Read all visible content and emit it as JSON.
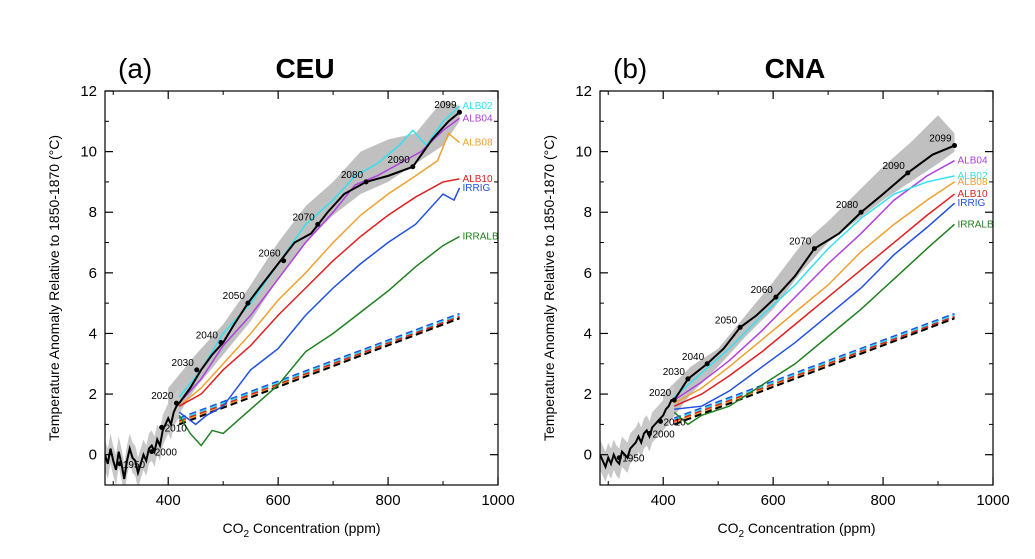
{
  "chart_data": [
    {
      "type": "line",
      "panel_letter": "(a)",
      "title": "CEU",
      "xlabel_main": "CO",
      "xlabel_sub": "2",
      "xlabel_rest": " Concentration (ppm)",
      "ylabel": "Temperature Anomaly Relative to 1850-1870 (°C)",
      "xlim": [
        285,
        1000
      ],
      "ylim": [
        -1,
        12
      ],
      "xticks": [
        "400",
        "600",
        "800",
        "1000"
      ],
      "xtick_values": [
        400,
        600,
        800,
        1000
      ],
      "yticks": [
        "0",
        "2",
        "4",
        "6",
        "8",
        "10",
        "12"
      ],
      "ytick_values": [
        0,
        2,
        4,
        6,
        8,
        10,
        12
      ],
      "historical": {
        "x": [
          285,
          290,
          295,
          300,
          305,
          310,
          315,
          320,
          325,
          330,
          335,
          340,
          345,
          350,
          355,
          360,
          365,
          370,
          375,
          380,
          385,
          390,
          395,
          400,
          405,
          410,
          415,
          420
        ],
        "y": [
          0.0,
          -0.3,
          0.2,
          -0.2,
          -0.5,
          0.1,
          -0.3,
          -0.8,
          -0.2,
          0.2,
          -0.1,
          -0.2,
          -0.6,
          -0.3,
          0.0,
          -0.2,
          0.2,
          0.3,
          0.1,
          0.5,
          0.3,
          0.8,
          1.0,
          1.2,
          1.0,
          1.4,
          1.6,
          1.7
        ]
      },
      "year_markers": [
        {
          "label": "1950",
          "x": 312,
          "y": -0.3
        },
        {
          "label": "2000",
          "x": 370,
          "y": 0.1
        },
        {
          "label": "2010",
          "x": 388,
          "y": 0.9
        },
        {
          "label": "2020",
          "x": 415,
          "y": 1.7
        },
        {
          "label": "2030",
          "x": 452,
          "y": 2.8
        },
        {
          "label": "2040",
          "x": 496,
          "y": 3.7
        },
        {
          "label": "2050",
          "x": 545,
          "y": 5.0
        },
        {
          "label": "2060",
          "x": 610,
          "y": 6.4
        },
        {
          "label": "2070",
          "x": 672,
          "y": 7.6
        },
        {
          "label": "2080",
          "x": 760,
          "y": 9.0
        },
        {
          "label": "2090",
          "x": 845,
          "y": 9.5
        },
        {
          "label": "2099",
          "x": 930,
          "y": 11.3
        }
      ],
      "series": [
        {
          "name": "ALB02",
          "color": "#33e0f0",
          "x": [
            420,
            460,
            500,
            550,
            600,
            650,
            700,
            740,
            780,
            820,
            845,
            870,
            900,
            930
          ],
          "y": [
            1.9,
            2.8,
            4.0,
            5.0,
            6.3,
            7.6,
            8.4,
            9.2,
            9.6,
            10.2,
            10.7,
            10.2,
            11.0,
            11.5
          ]
        },
        {
          "name": "ALB04",
          "color": "#b040e0",
          "x": [
            420,
            460,
            500,
            550,
            600,
            650,
            700,
            740,
            780,
            820,
            860,
            900,
            930
          ],
          "y": [
            1.7,
            2.5,
            3.6,
            4.6,
            5.8,
            7.0,
            8.0,
            8.9,
            9.2,
            9.6,
            10.0,
            10.7,
            11.1
          ]
        },
        {
          "name": "ALB08",
          "color": "#f0a030",
          "x": [
            420,
            460,
            500,
            550,
            600,
            650,
            700,
            750,
            800,
            850,
            890,
            910,
            930
          ],
          "y": [
            1.6,
            2.2,
            3.0,
            4.0,
            5.1,
            6.0,
            7.0,
            7.9,
            8.6,
            9.2,
            9.7,
            10.6,
            10.3
          ]
        },
        {
          "name": "ALB10",
          "color": "#e02020",
          "x": [
            420,
            460,
            500,
            550,
            600,
            650,
            700,
            750,
            800,
            850,
            900,
            930
          ],
          "y": [
            1.6,
            2.0,
            2.8,
            3.6,
            4.6,
            5.5,
            6.4,
            7.2,
            7.9,
            8.5,
            9.0,
            9.1
          ]
        },
        {
          "name": "IRRIG",
          "color": "#2050e0",
          "x": [
            420,
            450,
            470,
            500,
            550,
            600,
            650,
            700,
            750,
            800,
            850,
            900,
            920,
            930
          ],
          "y": [
            1.4,
            1.0,
            1.3,
            1.6,
            2.8,
            3.5,
            4.6,
            5.5,
            6.3,
            7.0,
            7.6,
            8.6,
            8.4,
            8.8
          ]
        },
        {
          "name": "IRRALB",
          "color": "#208020",
          "x": [
            420,
            440,
            460,
            480,
            500,
            550,
            600,
            650,
            700,
            750,
            800,
            850,
            900,
            930
          ],
          "y": [
            1.3,
            0.7,
            0.3,
            0.8,
            0.7,
            1.5,
            2.3,
            3.4,
            4.0,
            4.7,
            5.4,
            6.2,
            6.9,
            7.2
          ]
        }
      ],
      "dashed_series": [
        {
          "color": "#2050e0",
          "x": [
            420,
            930
          ],
          "y": [
            1.2,
            4.65
          ]
        },
        {
          "color": "#33e0f0",
          "x": [
            420,
            930
          ],
          "y": [
            1.15,
            4.6
          ]
        },
        {
          "color": "#e02020",
          "x": [
            420,
            930
          ],
          "y": [
            1.1,
            4.55
          ]
        },
        {
          "color": "#f0a030",
          "x": [
            420,
            930
          ],
          "y": [
            1.05,
            4.5
          ]
        },
        {
          "color": "#000000",
          "x": [
            420,
            930
          ],
          "y": [
            1.0,
            4.5
          ]
        }
      ],
      "spread_band": {
        "x": [
          400,
          450,
          500,
          550,
          600,
          650,
          700,
          750,
          800,
          850,
          900,
          930
        ],
        "low": [
          0.8,
          2.2,
          3.3,
          4.4,
          5.8,
          7.0,
          7.9,
          8.6,
          9.0,
          9.6,
          10.2,
          11.0
        ],
        "high": [
          2.2,
          3.3,
          4.3,
          5.6,
          7.0,
          8.2,
          9.0,
          10.0,
          10.4,
          10.6,
          11.7,
          11.5
        ]
      },
      "black_line": {
        "x": [
          420,
          440,
          460,
          480,
          500,
          520,
          545,
          570,
          600,
          630,
          660,
          690,
          720,
          760,
          800,
          845,
          880,
          910,
          930
        ],
        "y": [
          1.7,
          2.2,
          2.8,
          3.3,
          3.7,
          4.3,
          5.0,
          5.6,
          6.3,
          7.0,
          7.3,
          8.0,
          8.6,
          9.0,
          9.2,
          9.5,
          10.4,
          11.0,
          11.3
        ]
      }
    },
    {
      "type": "line",
      "panel_letter": "(b)",
      "title": "CNA",
      "xlabel_main": "CO",
      "xlabel_sub": "2",
      "xlabel_rest": " Concentration (ppm)",
      "ylabel": "Temperature Anomaly Relative to 1850-1870 (°C)",
      "xlim": [
        285,
        1000
      ],
      "ylim": [
        -1,
        12
      ],
      "xticks": [
        "400",
        "600",
        "800",
        "1000"
      ],
      "xtick_values": [
        400,
        600,
        800,
        1000
      ],
      "yticks": [
        "0",
        "2",
        "4",
        "6",
        "8",
        "10",
        "12"
      ],
      "ytick_values": [
        0,
        2,
        4,
        6,
        8,
        10,
        12
      ],
      "historical": {
        "x": [
          285,
          290,
          295,
          300,
          305,
          310,
          315,
          320,
          325,
          330,
          335,
          340,
          345,
          350,
          355,
          360,
          365,
          370,
          375,
          380,
          385,
          390,
          395,
          400,
          405,
          410,
          415,
          420
        ],
        "y": [
          0.0,
          -0.2,
          -0.4,
          -0.1,
          -0.3,
          0.0,
          -0.2,
          -0.3,
          0.1,
          0.0,
          -0.1,
          0.2,
          0.3,
          0.4,
          0.6,
          0.4,
          0.7,
          0.8,
          0.6,
          0.9,
          1.0,
          1.1,
          1.2,
          1.3,
          1.5,
          1.6,
          1.8,
          1.8
        ]
      },
      "year_markers": [
        {
          "label": "1950",
          "x": 320,
          "y": -0.1
        },
        {
          "label": "2000",
          "x": 375,
          "y": 0.7
        },
        {
          "label": "2010",
          "x": 395,
          "y": 1.1
        },
        {
          "label": "2020",
          "x": 420,
          "y": 1.8
        },
        {
          "label": "2030",
          "x": 445,
          "y": 2.5
        },
        {
          "label": "2040",
          "x": 480,
          "y": 3.0
        },
        {
          "label": "2050",
          "x": 540,
          "y": 4.2
        },
        {
          "label": "2060",
          "x": 605,
          "y": 5.2
        },
        {
          "label": "2070",
          "x": 675,
          "y": 6.8
        },
        {
          "label": "2080",
          "x": 760,
          "y": 8.0
        },
        {
          "label": "2090",
          "x": 845,
          "y": 9.3
        },
        {
          "label": "2099",
          "x": 930,
          "y": 10.2
        }
      ],
      "series": [
        {
          "name": "ALB04",
          "color": "#b040e0",
          "x": [
            420,
            470,
            520,
            580,
            640,
            700,
            760,
            820,
            880,
            930
          ],
          "y": [
            1.8,
            2.4,
            3.1,
            4.1,
            5.2,
            6.3,
            7.3,
            8.4,
            9.2,
            9.7
          ]
        },
        {
          "name": "ALB02",
          "color": "#33e0f0",
          "x": [
            420,
            470,
            520,
            580,
            640,
            700,
            760,
            820,
            880,
            930
          ],
          "y": [
            1.9,
            2.7,
            3.5,
            4.6,
            5.6,
            6.8,
            7.8,
            8.6,
            9.0,
            9.2
          ]
        },
        {
          "name": "ALB08",
          "color": "#f0a030",
          "x": [
            420,
            470,
            520,
            580,
            640,
            700,
            760,
            820,
            880,
            930
          ],
          "y": [
            1.7,
            2.2,
            2.9,
            3.8,
            4.7,
            5.6,
            6.7,
            7.6,
            8.4,
            9.0
          ]
        },
        {
          "name": "ALB10",
          "color": "#e02020",
          "x": [
            420,
            470,
            520,
            580,
            640,
            700,
            760,
            820,
            880,
            930
          ],
          "y": [
            1.6,
            2.0,
            2.6,
            3.4,
            4.3,
            5.2,
            6.1,
            7.0,
            7.9,
            8.6
          ]
        },
        {
          "name": "IRRIG",
          "color": "#2050e0",
          "x": [
            420,
            470,
            520,
            580,
            640,
            700,
            760,
            820,
            880,
            930
          ],
          "y": [
            1.5,
            1.6,
            2.1,
            2.9,
            3.7,
            4.6,
            5.5,
            6.6,
            7.5,
            8.3
          ]
        },
        {
          "name": "IRRALB",
          "color": "#208020",
          "x": [
            420,
            445,
            470,
            520,
            580,
            640,
            700,
            760,
            820,
            880,
            930
          ],
          "y": [
            1.4,
            1.0,
            1.3,
            1.6,
            2.3,
            3.0,
            3.9,
            4.8,
            5.8,
            6.8,
            7.6
          ]
        }
      ],
      "dashed_series": [
        {
          "color": "#2050e0",
          "x": [
            420,
            930
          ],
          "y": [
            1.2,
            4.65
          ]
        },
        {
          "color": "#33e0f0",
          "x": [
            420,
            930
          ],
          "y": [
            1.15,
            4.6
          ]
        },
        {
          "color": "#e02020",
          "x": [
            420,
            930
          ],
          "y": [
            1.1,
            4.55
          ]
        },
        {
          "color": "#f0a030",
          "x": [
            420,
            930
          ],
          "y": [
            1.05,
            4.5
          ]
        },
        {
          "color": "#000000",
          "x": [
            420,
            930
          ],
          "y": [
            1.0,
            4.5
          ]
        }
      ],
      "spread_band": {
        "x": [
          400,
          450,
          500,
          550,
          600,
          650,
          700,
          750,
          800,
          850,
          900,
          930
        ],
        "low": [
          0.8,
          2.0,
          2.9,
          3.9,
          4.8,
          6.0,
          7.0,
          7.7,
          8.4,
          9.0,
          9.6,
          10.0
        ],
        "high": [
          2.0,
          2.9,
          3.5,
          4.6,
          5.7,
          6.9,
          7.7,
          8.6,
          9.5,
          10.3,
          11.2,
          10.6
        ]
      },
      "black_line": {
        "x": [
          420,
          445,
          480,
          510,
          540,
          570,
          605,
          640,
          675,
          720,
          760,
          800,
          845,
          890,
          930
        ],
        "y": [
          1.8,
          2.5,
          3.0,
          3.5,
          4.2,
          4.6,
          5.2,
          5.9,
          6.8,
          7.3,
          8.0,
          8.6,
          9.3,
          9.9,
          10.2
        ]
      }
    }
  ]
}
